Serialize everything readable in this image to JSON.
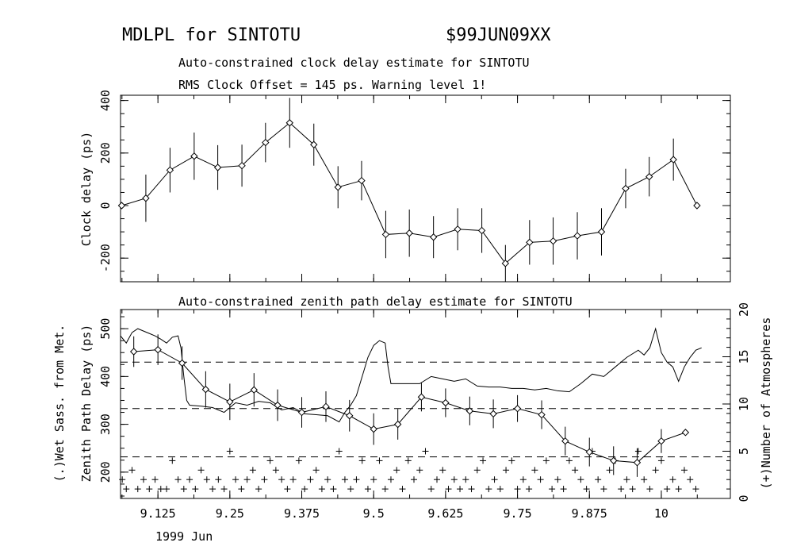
{
  "header": {
    "title": "MDLPL for SINTOTU",
    "session": "$99JUN09XX"
  },
  "chart_data": [
    {
      "type": "line",
      "title": "Auto-constrained clock delay estimate for SINTOTU",
      "subtitle": "RMS Clock Offset = 145 ps. Warning level 1!",
      "ylabel": "Clock delay (ps)",
      "xlim": [
        9.06,
        10.12
      ],
      "ylim": [
        -290,
        420
      ],
      "yticks": [
        -200,
        0,
        200,
        400
      ],
      "series": [
        {
          "marker": "diamond",
          "x": [
            9.062,
            9.104,
            9.146,
            9.188,
            9.229,
            9.271,
            9.312,
            9.354,
            9.396,
            9.438,
            9.479,
            9.521,
            9.562,
            9.604,
            9.646,
            9.688,
            9.729,
            9.771,
            9.812,
            9.854,
            9.896,
            9.938,
            9.979,
            10.021,
            10.062
          ],
          "values": [
            0,
            28,
            135,
            188,
            145,
            152,
            240,
            315,
            232,
            70,
            95,
            -110,
            -105,
            -120,
            -90,
            -95,
            -220,
            -140,
            -135,
            -115,
            -100,
            65,
            110,
            175,
            0
          ],
          "errors": [
            0,
            90,
            85,
            90,
            85,
            80,
            75,
            95,
            80,
            80,
            75,
            90,
            90,
            80,
            80,
            85,
            70,
            85,
            90,
            90,
            90,
            75,
            75,
            80,
            0
          ]
        }
      ]
    },
    {
      "type": "line",
      "title": "Auto-constrained zenith path delay estimate for SINTOTU",
      "ylabel": "Zenith Path Delay (ps)",
      "ylabel_outer": "(.)Wet Sass. from Met.",
      "y2label": "(+)Number of Atmospheres",
      "xlabel": "1999 Jun",
      "xlim": [
        9.06,
        10.12
      ],
      "xticks": [
        9.125,
        9.25,
        9.375,
        9.5,
        9.625,
        9.75,
        9.875,
        10
      ],
      "xtick_labels": [
        "9.125",
        "9.25",
        "9.375",
        "9.5",
        "9.625",
        "9.75",
        "9.875",
        "10"
      ],
      "ylim": [
        145,
        540
      ],
      "yticks": [
        200,
        300,
        400,
        500
      ],
      "y2lim": [
        0,
        20
      ],
      "y2ticks": [
        0,
        5,
        10,
        15,
        20
      ],
      "reference_lines": [
        430,
        333,
        232
      ],
      "series": [
        {
          "name": "Zenith path delay estimate",
          "marker": "diamond",
          "x": [
            9.083,
            9.125,
            9.167,
            9.208,
            9.25,
            9.292,
            9.333,
            9.375,
            9.417,
            9.458,
            9.5,
            9.542,
            9.583,
            9.625,
            9.667,
            9.708,
            9.75,
            9.792,
            9.833,
            9.875,
            9.917,
            9.958,
            10.0,
            10.042
          ],
          "values": [
            452,
            456,
            428,
            373,
            347,
            372,
            340,
            325,
            337,
            318,
            290,
            300,
            357,
            345,
            328,
            322,
            333,
            320,
            265,
            242,
            224,
            220,
            265,
            283
          ],
          "errors": [
            32,
            32,
            35,
            38,
            38,
            35,
            33,
            32,
            32,
            33,
            33,
            32,
            30,
            30,
            30,
            30,
            28,
            30,
            30,
            30,
            30,
            30,
            25,
            0
          ]
        },
        {
          "name": "Wet Sass. from Met.",
          "marker": "none",
          "x": [
            9.06,
            9.07,
            9.08,
            9.09,
            9.1,
            9.11,
            9.12,
            9.13,
            9.14,
            9.15,
            9.16,
            9.165,
            9.17,
            9.175,
            9.18,
            9.2,
            9.22,
            9.24,
            9.26,
            9.28,
            9.3,
            9.32,
            9.34,
            9.36,
            9.38,
            9.4,
            9.42,
            9.44,
            9.45,
            9.46,
            9.47,
            9.48,
            9.49,
            9.5,
            9.51,
            9.52,
            9.525,
            9.53,
            9.54,
            9.56,
            9.58,
            9.6,
            9.62,
            9.64,
            9.66,
            9.68,
            9.7,
            9.72,
            9.74,
            9.76,
            9.78,
            9.8,
            9.82,
            9.84,
            9.86,
            9.88,
            9.9,
            9.92,
            9.94,
            9.96,
            9.97,
            9.98,
            9.99,
            10.0,
            10.01,
            10.02,
            10.03,
            10.04,
            10.05,
            10.06,
            10.07
          ],
          "values": [
            485,
            470,
            492,
            500,
            495,
            490,
            485,
            478,
            470,
            482,
            485,
            460,
            400,
            350,
            340,
            338,
            335,
            325,
            345,
            340,
            348,
            345,
            330,
            335,
            322,
            320,
            318,
            305,
            325,
            340,
            360,
            400,
            440,
            465,
            475,
            470,
            420,
            385,
            385,
            385,
            385,
            400,
            395,
            390,
            395,
            380,
            378,
            378,
            375,
            375,
            372,
            375,
            370,
            368,
            385,
            405,
            400,
            420,
            440,
            455,
            445,
            460,
            500,
            450,
            430,
            420,
            390,
            420,
            440,
            455,
            460
          ]
        },
        {
          "name": "Number of Atmospheres",
          "axis": "y2",
          "marker": "plus",
          "x": [
            9.063,
            9.07,
            9.08,
            9.09,
            9.1,
            9.11,
            9.12,
            9.13,
            9.14,
            9.15,
            9.16,
            9.17,
            9.18,
            9.19,
            9.2,
            9.21,
            9.22,
            9.23,
            9.24,
            9.25,
            9.26,
            9.27,
            9.28,
            9.29,
            9.3,
            9.31,
            9.32,
            9.33,
            9.34,
            9.35,
            9.36,
            9.37,
            9.38,
            9.39,
            9.4,
            9.41,
            9.42,
            9.43,
            9.44,
            9.45,
            9.46,
            9.47,
            9.48,
            9.49,
            9.5,
            9.51,
            9.52,
            9.53,
            9.54,
            9.55,
            9.56,
            9.57,
            9.58,
            9.59,
            9.6,
            9.61,
            9.62,
            9.63,
            9.64,
            9.65,
            9.66,
            9.67,
            9.68,
            9.69,
            9.7,
            9.71,
            9.72,
            9.73,
            9.74,
            9.75,
            9.76,
            9.77,
            9.78,
            9.79,
            9.8,
            9.81,
            9.82,
            9.83,
            9.84,
            9.85,
            9.86,
            9.87,
            9.88,
            9.89,
            9.9,
            9.91,
            9.92,
            9.93,
            9.94,
            9.95,
            9.96,
            9.97,
            9.98,
            9.99,
            10.0,
            10.01,
            10.02,
            10.03,
            10.04,
            10.05,
            10.06
          ],
          "values": [
            2,
            1,
            3,
            1,
            2,
            1,
            2,
            1,
            1,
            4,
            2,
            1,
            2,
            1,
            3,
            2,
            1,
            2,
            1,
            5,
            2,
            1,
            2,
            3,
            1,
            2,
            4,
            3,
            2,
            1,
            2,
            4,
            1,
            2,
            3,
            1,
            2,
            1,
            5,
            2,
            1,
            2,
            4,
            1,
            2,
            4,
            1,
            2,
            3,
            1,
            4,
            2,
            3,
            5,
            1,
            2,
            3,
            1,
            2,
            1,
            2,
            1,
            3,
            4,
            1,
            2,
            1,
            3,
            4,
            1,
            2,
            1,
            3,
            2,
            4,
            1,
            2,
            1,
            4,
            3,
            2,
            1,
            5,
            2,
            1,
            3,
            4,
            1,
            2,
            1,
            5,
            2,
            1,
            3,
            4,
            1,
            2,
            1,
            3,
            2,
            1
          ]
        }
      ]
    }
  ]
}
